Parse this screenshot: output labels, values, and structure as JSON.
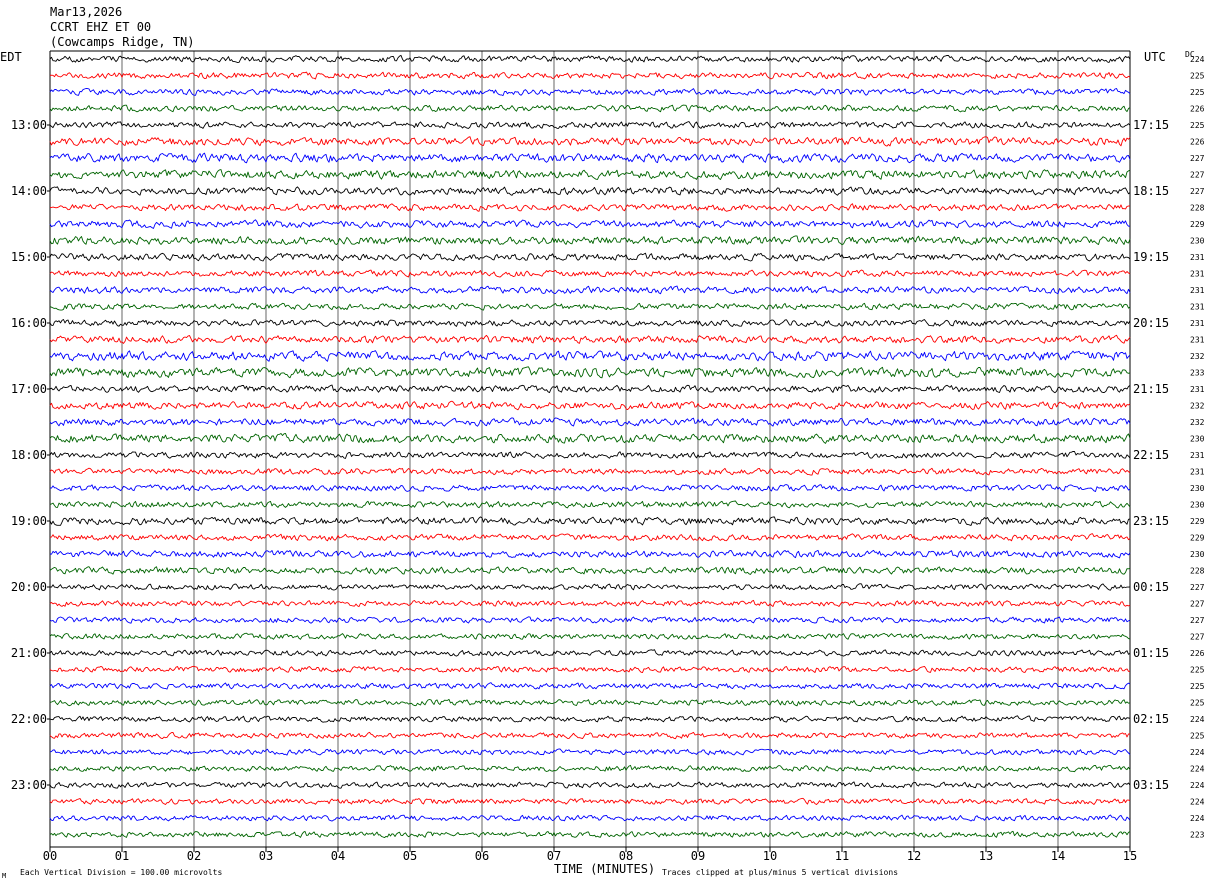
{
  "header": {
    "date": "Mar13,2026",
    "station": "CCRT EHZ ET 00",
    "location": "(Cowcamps Ridge, TN)"
  },
  "left_zone_label": "EDT",
  "right_zone_label": "UTC",
  "dc_header": "DC",
  "footer": {
    "scale_note": "Each Vertical Division =  100.00 microvolts",
    "xlabel": "TIME (MINUTES)",
    "clip_note": "Traces clipped at plus/minus 5 vertical divisions"
  },
  "colors": {
    "trace_cycle": [
      "#000000",
      "#ff0000",
      "#0000ff",
      "#006400"
    ],
    "grid": "#000000",
    "background": "#ffffff"
  },
  "chart_data": {
    "type": "line",
    "xlabel": "TIME (MINUTES)",
    "xlim": [
      0,
      15
    ],
    "x_ticks": [
      "00",
      "01",
      "02",
      "03",
      "04",
      "05",
      "06",
      "07",
      "08",
      "09",
      "10",
      "11",
      "12",
      "13",
      "14",
      "15"
    ],
    "rows_per_hour": 4,
    "minutes_per_row": 15,
    "row_count": 48,
    "left_hour_labels": [
      "13:00",
      "14:00",
      "15:00",
      "16:00",
      "17:00",
      "18:00",
      "19:00",
      "20:00",
      "21:00",
      "22:00",
      "23:00"
    ],
    "right_hour_labels": [
      "17:15",
      "18:15",
      "19:15",
      "20:15",
      "21:15",
      "22:15",
      "23:15",
      "00:15",
      "01:15",
      "02:15",
      "03:15"
    ],
    "first_labeled_row": 4,
    "dc_offsets": [
      224,
      225,
      225,
      226,
      225,
      226,
      227,
      227,
      227,
      228,
      229,
      230,
      231,
      231,
      231,
      231,
      231,
      231,
      232,
      233,
      231,
      232,
      232,
      230,
      231,
      231,
      230,
      230,
      229,
      229,
      230,
      228,
      227,
      227,
      227,
      227,
      226,
      225,
      225,
      225,
      224,
      225,
      224,
      224,
      224,
      224,
      224,
      223
    ],
    "relative_amplitude": [
      1.0,
      1.0,
      1.0,
      1.0,
      1.0,
      1.3,
      1.4,
      1.4,
      1.2,
      1.1,
      1.2,
      1.3,
      1.1,
      1.0,
      1.1,
      1.0,
      1.0,
      1.2,
      1.5,
      1.5,
      1.1,
      1.2,
      1.2,
      1.4,
      1.0,
      1.0,
      1.0,
      1.0,
      1.2,
      1.0,
      1.1,
      1.1,
      0.9,
      0.9,
      0.9,
      0.9,
      0.9,
      0.9,
      0.9,
      0.9,
      0.9,
      0.9,
      0.9,
      0.9,
      0.9,
      0.9,
      0.9,
      0.9
    ],
    "scale_microvolts_per_division": 100.0,
    "clip_divisions": 5
  }
}
